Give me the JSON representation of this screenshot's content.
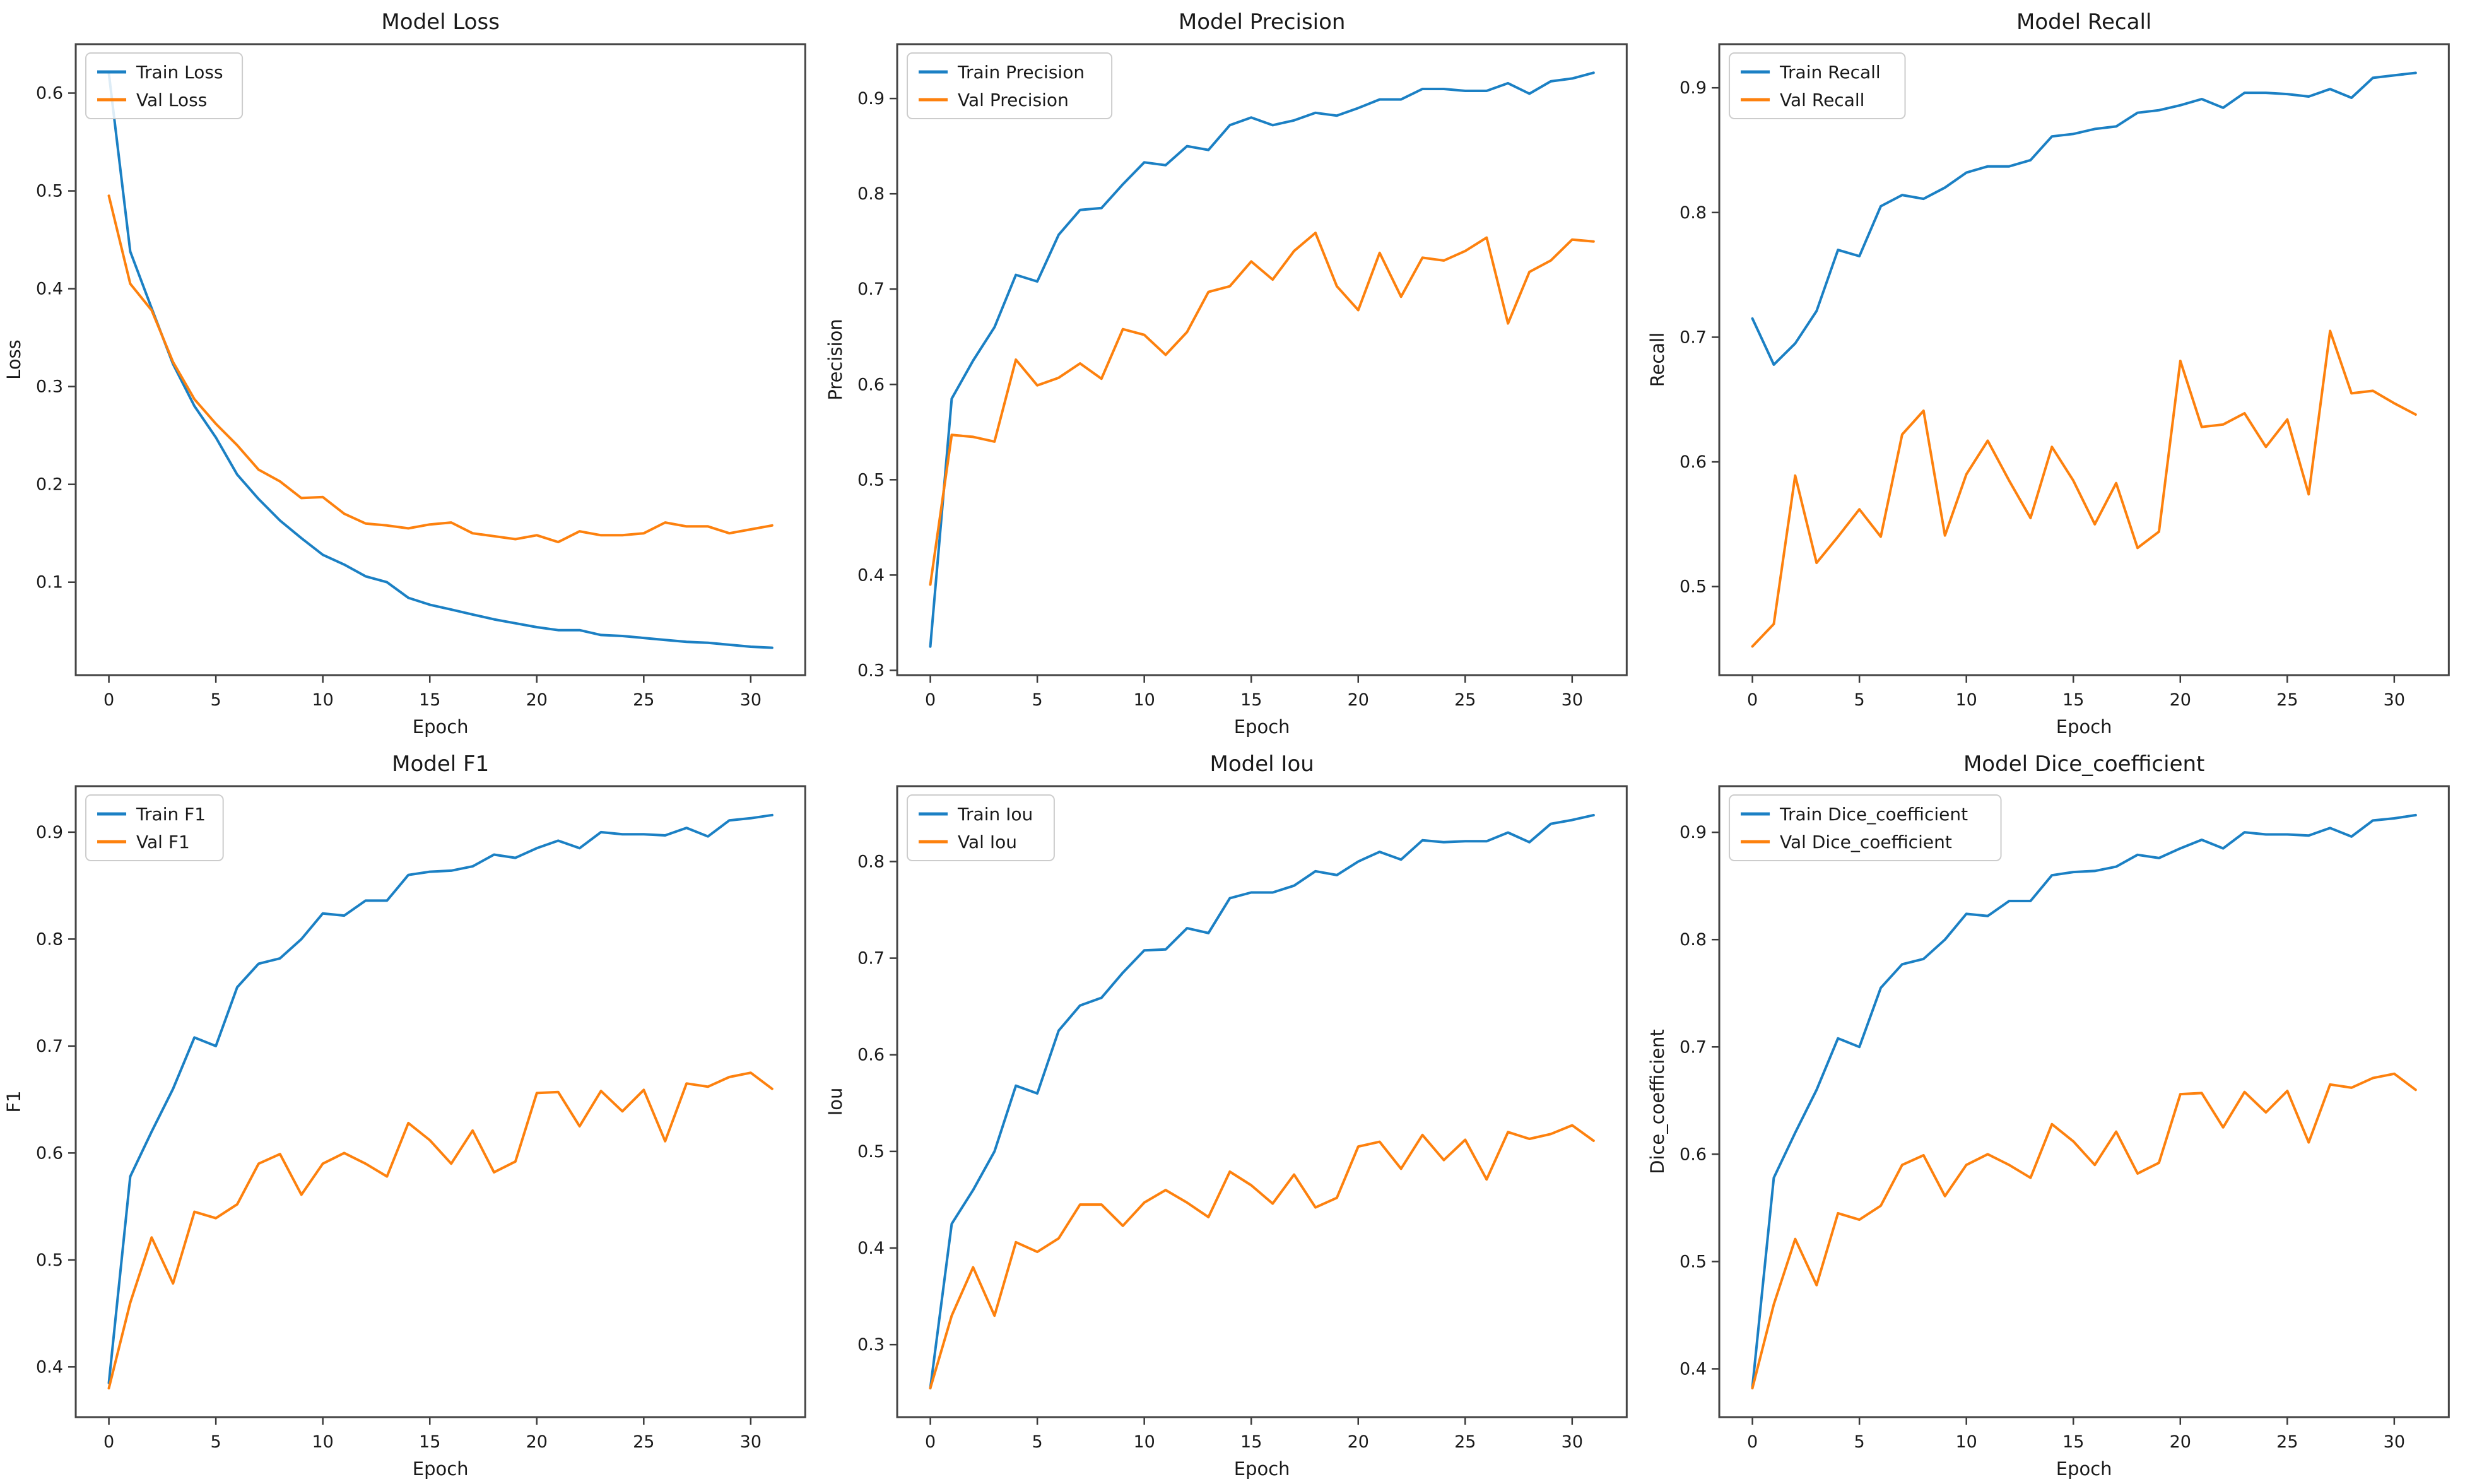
{
  "figure": {
    "background": "#ffffff",
    "rows": 2,
    "cols": 3
  },
  "colors": {
    "train": "#1b80c4",
    "val": "#fd810e",
    "spine": "#454545",
    "tick": "#3a3a3a",
    "text": "#1a1a1a",
    "legend_border": "#cccccc",
    "legend_fill": "#ffffff"
  },
  "chart_data": [
    {
      "type": "line",
      "title": "Model Loss",
      "xlabel": "Epoch",
      "ylabel": "Loss",
      "xlim": [
        -1.55,
        32.55
      ],
      "ylim": [
        0.005,
        0.65
      ],
      "xticks": [
        0,
        5,
        10,
        15,
        20,
        25,
        30
      ],
      "yticks": [
        0.1,
        0.2,
        0.3,
        0.4,
        0.5,
        0.6
      ],
      "legend_position": "upper-left",
      "series": [
        {
          "name": "Train Loss",
          "color_key": "train",
          "values": [
            0.62,
            0.438,
            0.38,
            0.323,
            0.28,
            0.248,
            0.21,
            0.185,
            0.163,
            0.145,
            0.128,
            0.118,
            0.106,
            0.1,
            0.084,
            0.077,
            0.072,
            0.067,
            0.062,
            0.058,
            0.054,
            0.051,
            0.051,
            0.046,
            0.045,
            0.043,
            0.041,
            0.039,
            0.038,
            0.036,
            0.034,
            0.033
          ]
        },
        {
          "name": "Val Loss",
          "color_key": "val",
          "values": [
            0.495,
            0.405,
            0.378,
            0.325,
            0.287,
            0.262,
            0.24,
            0.215,
            0.203,
            0.186,
            0.187,
            0.17,
            0.16,
            0.158,
            0.155,
            0.159,
            0.161,
            0.15,
            0.147,
            0.144,
            0.148,
            0.141,
            0.152,
            0.148,
            0.148,
            0.15,
            0.161,
            0.157,
            0.157,
            0.15,
            0.154,
            0.158
          ]
        }
      ]
    },
    {
      "type": "line",
      "title": "Model Precision",
      "xlabel": "Epoch",
      "ylabel": "Precision",
      "xlim": [
        -1.55,
        32.55
      ],
      "ylim": [
        0.295,
        0.957
      ],
      "xticks": [
        0,
        5,
        10,
        15,
        20,
        25,
        30
      ],
      "yticks": [
        0.3,
        0.4,
        0.5,
        0.6,
        0.7,
        0.8,
        0.9
      ],
      "legend_position": "upper-left",
      "series": [
        {
          "name": "Train Precision",
          "color_key": "train",
          "values": [
            0.325,
            0.585,
            0.625,
            0.66,
            0.715,
            0.708,
            0.757,
            0.783,
            0.785,
            0.81,
            0.833,
            0.83,
            0.85,
            0.846,
            0.872,
            0.88,
            0.872,
            0.877,
            0.885,
            0.882,
            0.89,
            0.899,
            0.899,
            0.91,
            0.91,
            0.908,
            0.908,
            0.916,
            0.905,
            0.918,
            0.921,
            0.927
          ]
        },
        {
          "name": "Val Precision",
          "color_key": "val",
          "values": [
            0.39,
            0.547,
            0.545,
            0.54,
            0.626,
            0.599,
            0.607,
            0.622,
            0.606,
            0.658,
            0.652,
            0.631,
            0.655,
            0.697,
            0.703,
            0.729,
            0.71,
            0.74,
            0.759,
            0.703,
            0.678,
            0.738,
            0.692,
            0.733,
            0.73,
            0.74,
            0.754,
            0.664,
            0.718,
            0.73,
            0.752,
            0.75
          ]
        }
      ]
    },
    {
      "type": "line",
      "title": "Model Recall",
      "xlabel": "Epoch",
      "ylabel": "Recall",
      "xlim": [
        -1.55,
        32.55
      ],
      "ylim": [
        0.429,
        0.935
      ],
      "xticks": [
        0,
        5,
        10,
        15,
        20,
        25,
        30
      ],
      "yticks": [
        0.5,
        0.6,
        0.7,
        0.8,
        0.9
      ],
      "legend_position": "upper-left",
      "series": [
        {
          "name": "Train Recall",
          "color_key": "train",
          "values": [
            0.715,
            0.678,
            0.695,
            0.721,
            0.77,
            0.765,
            0.805,
            0.814,
            0.811,
            0.82,
            0.832,
            0.837,
            0.837,
            0.842,
            0.861,
            0.863,
            0.867,
            0.869,
            0.88,
            0.882,
            0.886,
            0.891,
            0.884,
            0.896,
            0.896,
            0.895,
            0.893,
            0.899,
            0.892,
            0.908,
            0.91,
            0.912
          ]
        },
        {
          "name": "Val Recall",
          "color_key": "val",
          "values": [
            0.452,
            0.47,
            0.589,
            0.519,
            0.54,
            0.562,
            0.54,
            0.622,
            0.641,
            0.541,
            0.59,
            0.617,
            0.585,
            0.555,
            0.612,
            0.585,
            0.55,
            0.583,
            0.531,
            0.544,
            0.681,
            0.628,
            0.63,
            0.639,
            0.612,
            0.634,
            0.574,
            0.705,
            0.655,
            0.657,
            0.647,
            0.638
          ]
        }
      ]
    },
    {
      "type": "line",
      "title": "Model F1",
      "xlabel": "Epoch",
      "ylabel": "F1",
      "xlim": [
        -1.55,
        32.55
      ],
      "ylim": [
        0.353,
        0.943
      ],
      "xticks": [
        0,
        5,
        10,
        15,
        20,
        25,
        30
      ],
      "yticks": [
        0.4,
        0.5,
        0.6,
        0.7,
        0.8,
        0.9
      ],
      "legend_position": "upper-left",
      "series": [
        {
          "name": "Train F1",
          "color_key": "train",
          "values": [
            0.385,
            0.578,
            0.62,
            0.66,
            0.708,
            0.7,
            0.755,
            0.777,
            0.782,
            0.8,
            0.824,
            0.822,
            0.836,
            0.836,
            0.86,
            0.863,
            0.864,
            0.868,
            0.879,
            0.876,
            0.885,
            0.892,
            0.885,
            0.9,
            0.898,
            0.898,
            0.897,
            0.904,
            0.896,
            0.911,
            0.913,
            0.916
          ]
        },
        {
          "name": "Val F1",
          "color_key": "val",
          "values": [
            0.38,
            0.46,
            0.521,
            0.478,
            0.545,
            0.539,
            0.552,
            0.59,
            0.599,
            0.561,
            0.59,
            0.6,
            0.59,
            0.578,
            0.628,
            0.612,
            0.59,
            0.621,
            0.582,
            0.592,
            0.656,
            0.657,
            0.625,
            0.658,
            0.639,
            0.659,
            0.611,
            0.665,
            0.662,
            0.671,
            0.675,
            0.66
          ]
        }
      ]
    },
    {
      "type": "line",
      "title": "Model Iou",
      "xlabel": "Epoch",
      "ylabel": "Iou",
      "xlim": [
        -1.55,
        32.55
      ],
      "ylim": [
        0.225,
        0.878
      ],
      "xticks": [
        0,
        5,
        10,
        15,
        20,
        25,
        30
      ],
      "yticks": [
        0.3,
        0.4,
        0.5,
        0.6,
        0.7,
        0.8
      ],
      "legend_position": "upper-left",
      "series": [
        {
          "name": "Train Iou",
          "color_key": "train",
          "values": [
            0.255,
            0.425,
            0.46,
            0.5,
            0.568,
            0.56,
            0.625,
            0.651,
            0.659,
            0.685,
            0.708,
            0.709,
            0.731,
            0.726,
            0.762,
            0.768,
            0.768,
            0.775,
            0.79,
            0.786,
            0.8,
            0.81,
            0.802,
            0.822,
            0.82,
            0.821,
            0.821,
            0.83,
            0.82,
            0.839,
            0.843,
            0.848
          ]
        },
        {
          "name": "Val Iou",
          "color_key": "val",
          "values": [
            0.255,
            0.33,
            0.38,
            0.33,
            0.406,
            0.396,
            0.41,
            0.445,
            0.445,
            0.423,
            0.447,
            0.46,
            0.447,
            0.432,
            0.479,
            0.465,
            0.446,
            0.476,
            0.442,
            0.452,
            0.505,
            0.51,
            0.482,
            0.517,
            0.491,
            0.512,
            0.471,
            0.52,
            0.513,
            0.518,
            0.527,
            0.511
          ]
        }
      ]
    },
    {
      "type": "line",
      "title": "Model Dice_coefficient",
      "xlabel": "Epoch",
      "ylabel": "Dice_coefficient",
      "xlim": [
        -1.55,
        32.55
      ],
      "ylim": [
        0.355,
        0.943
      ],
      "xticks": [
        0,
        5,
        10,
        15,
        20,
        25,
        30
      ],
      "yticks": [
        0.4,
        0.5,
        0.6,
        0.7,
        0.8,
        0.9
      ],
      "legend_position": "upper-left",
      "series": [
        {
          "name": "Train Dice_coefficient",
          "color_key": "train",
          "values": [
            0.383,
            0.578,
            0.62,
            0.66,
            0.708,
            0.7,
            0.755,
            0.777,
            0.782,
            0.8,
            0.824,
            0.822,
            0.836,
            0.836,
            0.86,
            0.863,
            0.864,
            0.868,
            0.879,
            0.876,
            0.885,
            0.893,
            0.885,
            0.9,
            0.898,
            0.898,
            0.897,
            0.904,
            0.896,
            0.911,
            0.913,
            0.916
          ]
        },
        {
          "name": "Val Dice_coefficient",
          "color_key": "val",
          "values": [
            0.382,
            0.46,
            0.521,
            0.478,
            0.545,
            0.539,
            0.552,
            0.59,
            0.599,
            0.561,
            0.59,
            0.6,
            0.59,
            0.578,
            0.628,
            0.612,
            0.59,
            0.621,
            0.582,
            0.592,
            0.656,
            0.657,
            0.625,
            0.658,
            0.639,
            0.659,
            0.611,
            0.665,
            0.662,
            0.671,
            0.675,
            0.66
          ]
        }
      ]
    }
  ]
}
